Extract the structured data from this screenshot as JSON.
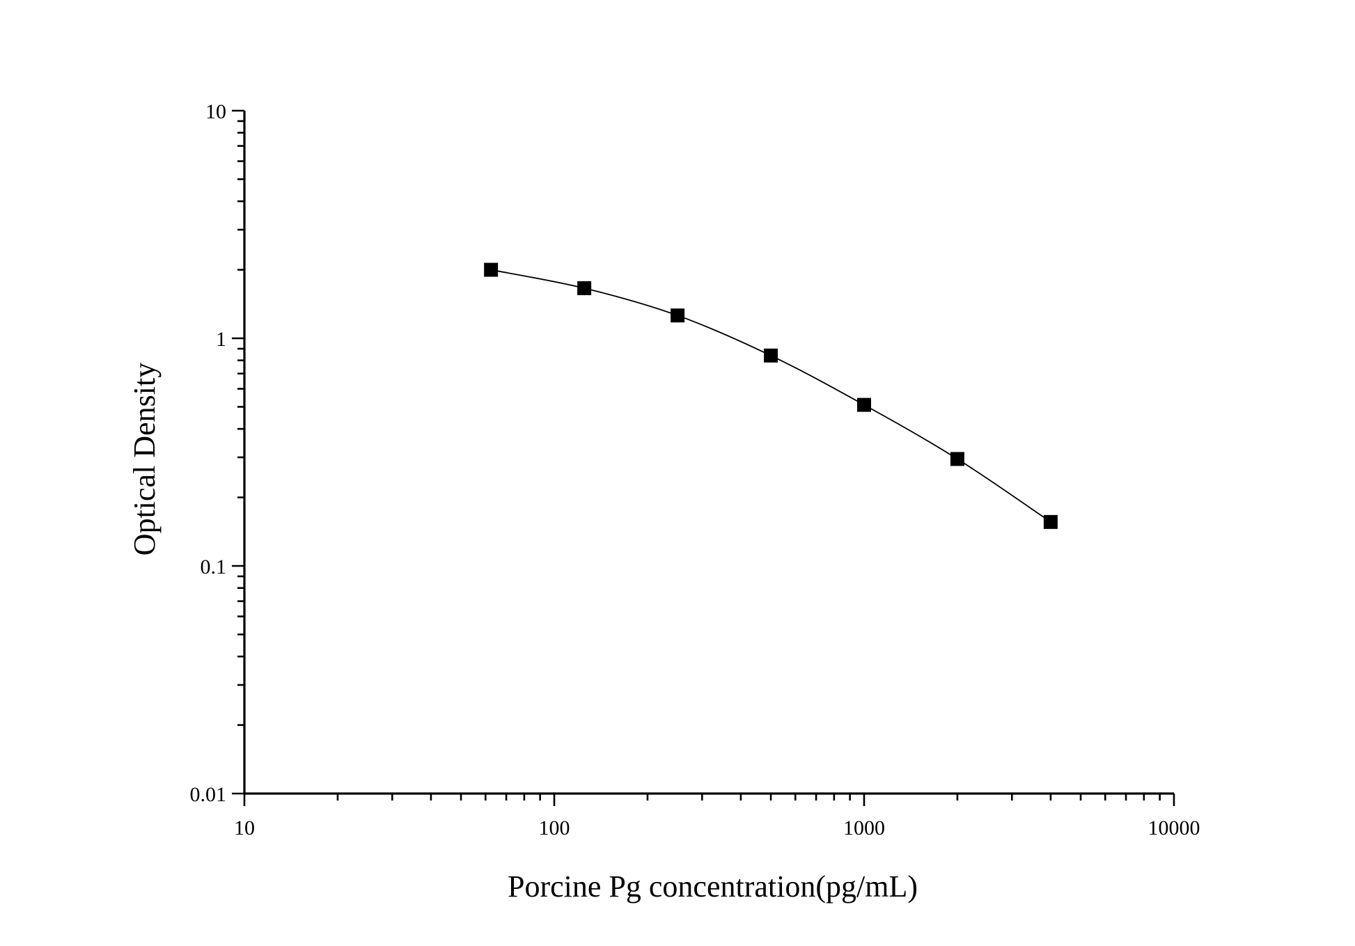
{
  "chart_data": {
    "type": "line",
    "xlabel": "Porcine Pg concentration(pg/mL)",
    "ylabel": "Optical Density",
    "x_scale": "log",
    "y_scale": "log",
    "xlim": [
      10,
      10000
    ],
    "ylim": [
      0.01,
      10
    ],
    "x_ticks": [
      10,
      100,
      1000,
      10000
    ],
    "x_tick_labels": [
      "10",
      "100",
      "1000",
      "10000"
    ],
    "y_ticks": [
      0.01,
      0.1,
      1,
      10
    ],
    "y_tick_labels": [
      "0.01",
      "0.1",
      "1",
      "10"
    ],
    "grid": false,
    "legend": "none",
    "marker": "square",
    "color": "#000000",
    "series": [
      {
        "x": [
          62.5,
          125,
          250,
          500,
          1000,
          2000,
          4000
        ],
        "y": [
          2.0,
          1.66,
          1.26,
          0.84,
          0.51,
          0.295,
          0.156
        ]
      }
    ]
  }
}
